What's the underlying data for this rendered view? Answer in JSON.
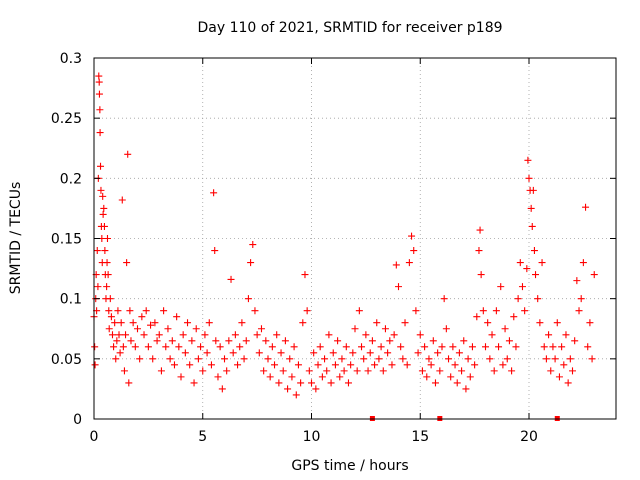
{
  "chart_data": {
    "type": "scatter",
    "title": "Day 110 of 2021, SRMTID for receiver p189",
    "xlabel": "GPS time / hours",
    "ylabel": "SRMTID / TECUs",
    "xlim": [
      0,
      24
    ],
    "ylim": [
      0,
      0.3
    ],
    "xticks": [
      0,
      5,
      10,
      15,
      20
    ],
    "xtick_labels": [
      "0",
      "5",
      "10",
      "15",
      "20"
    ],
    "yticks": [
      0,
      0.05,
      0.1,
      0.15,
      0.2,
      0.25,
      0.3
    ],
    "ytick_labels": [
      "0",
      "0.05",
      "0.1",
      "0.15",
      "0.2",
      "0.25",
      "0.3"
    ],
    "grid": true,
    "marker": "plus",
    "color": "#ff0000",
    "series": [
      {
        "name": "SRMTID",
        "points": [
          [
            0.0,
            0.085
          ],
          [
            0.03,
            0.06
          ],
          [
            0.05,
            0.045
          ],
          [
            0.08,
            0.1
          ],
          [
            0.1,
            0.12
          ],
          [
            0.12,
            0.09
          ],
          [
            0.15,
            0.14
          ],
          [
            0.18,
            0.11
          ],
          [
            0.2,
            0.2
          ],
          [
            0.22,
            0.285
          ],
          [
            0.24,
            0.28
          ],
          [
            0.25,
            0.27
          ],
          [
            0.27,
            0.257
          ],
          [
            0.28,
            0.238
          ],
          [
            0.3,
            0.21
          ],
          [
            0.32,
            0.19
          ],
          [
            0.34,
            0.16
          ],
          [
            0.36,
            0.15
          ],
          [
            0.38,
            0.13
          ],
          [
            0.4,
            0.185
          ],
          [
            0.42,
            0.17
          ],
          [
            0.45,
            0.175
          ],
          [
            0.48,
            0.16
          ],
          [
            0.5,
            0.14
          ],
          [
            0.52,
            0.12
          ],
          [
            0.55,
            0.1
          ],
          [
            0.58,
            0.11
          ],
          [
            0.6,
            0.13
          ],
          [
            0.62,
            0.15
          ],
          [
            0.65,
            0.12
          ],
          [
            0.68,
            0.09
          ],
          [
            0.7,
            0.075
          ],
          [
            0.75,
            0.1
          ],
          [
            0.8,
            0.085
          ],
          [
            0.85,
            0.07
          ],
          [
            0.9,
            0.06
          ],
          [
            0.95,
            0.08
          ],
          [
            1.0,
            0.05
          ],
          [
            1.05,
            0.065
          ],
          [
            1.1,
            0.09
          ],
          [
            1.15,
            0.07
          ],
          [
            1.2,
            0.055
          ],
          [
            1.25,
            0.08
          ],
          [
            1.3,
            0.182
          ],
          [
            1.35,
            0.06
          ],
          [
            1.4,
            0.04
          ],
          [
            1.45,
            0.07
          ],
          [
            1.5,
            0.13
          ],
          [
            1.55,
            0.22
          ],
          [
            1.6,
            0.03
          ],
          [
            1.65,
            0.09
          ],
          [
            1.7,
            0.065
          ],
          [
            1.8,
            0.08
          ],
          [
            1.9,
            0.06
          ],
          [
            2.0,
            0.075
          ],
          [
            2.1,
            0.05
          ],
          [
            2.2,
            0.085
          ],
          [
            2.3,
            0.07
          ],
          [
            2.4,
            0.09
          ],
          [
            2.5,
            0.06
          ],
          [
            2.6,
            0.078
          ],
          [
            2.7,
            0.05
          ],
          [
            2.8,
            0.08
          ],
          [
            2.9,
            0.065
          ],
          [
            3.0,
            0.07
          ],
          [
            3.1,
            0.04
          ],
          [
            3.2,
            0.09
          ],
          [
            3.3,
            0.06
          ],
          [
            3.4,
            0.075
          ],
          [
            3.5,
            0.05
          ],
          [
            3.6,
            0.065
          ],
          [
            3.7,
            0.045
          ],
          [
            3.8,
            0.085
          ],
          [
            3.9,
            0.06
          ],
          [
            4.0,
            0.035
          ],
          [
            4.1,
            0.07
          ],
          [
            4.2,
            0.055
          ],
          [
            4.3,
            0.08
          ],
          [
            4.4,
            0.045
          ],
          [
            4.5,
            0.065
          ],
          [
            4.6,
            0.03
          ],
          [
            4.7,
            0.075
          ],
          [
            4.8,
            0.05
          ],
          [
            4.9,
            0.06
          ],
          [
            5.0,
            0.04
          ],
          [
            5.1,
            0.07
          ],
          [
            5.2,
            0.055
          ],
          [
            5.3,
            0.08
          ],
          [
            5.4,
            0.045
          ],
          [
            5.5,
            0.188
          ],
          [
            5.55,
            0.14
          ],
          [
            5.6,
            0.065
          ],
          [
            5.7,
            0.035
          ],
          [
            5.8,
            0.06
          ],
          [
            5.9,
            0.025
          ],
          [
            6.0,
            0.05
          ],
          [
            6.1,
            0.04
          ],
          [
            6.2,
            0.065
          ],
          [
            6.3,
            0.116
          ],
          [
            6.4,
            0.055
          ],
          [
            6.5,
            0.07
          ],
          [
            6.6,
            0.045
          ],
          [
            6.7,
            0.06
          ],
          [
            6.8,
            0.08
          ],
          [
            6.9,
            0.05
          ],
          [
            7.0,
            0.065
          ],
          [
            7.1,
            0.1
          ],
          [
            7.2,
            0.13
          ],
          [
            7.3,
            0.145
          ],
          [
            7.4,
            0.09
          ],
          [
            7.5,
            0.07
          ],
          [
            7.6,
            0.055
          ],
          [
            7.7,
            0.075
          ],
          [
            7.8,
            0.04
          ],
          [
            7.9,
            0.065
          ],
          [
            8.0,
            0.05
          ],
          [
            8.1,
            0.035
          ],
          [
            8.2,
            0.06
          ],
          [
            8.3,
            0.045
          ],
          [
            8.4,
            0.07
          ],
          [
            8.5,
            0.03
          ],
          [
            8.6,
            0.055
          ],
          [
            8.7,
            0.04
          ],
          [
            8.8,
            0.065
          ],
          [
            8.9,
            0.025
          ],
          [
            9.0,
            0.05
          ],
          [
            9.1,
            0.035
          ],
          [
            9.2,
            0.06
          ],
          [
            9.3,
            0.02
          ],
          [
            9.4,
            0.045
          ],
          [
            9.5,
            0.03
          ],
          [
            9.6,
            0.08
          ],
          [
            9.7,
            0.12
          ],
          [
            9.8,
            0.09
          ],
          [
            9.9,
            0.04
          ],
          [
            10.0,
            0.03
          ],
          [
            10.1,
            0.055
          ],
          [
            10.2,
            0.025
          ],
          [
            10.3,
            0.045
          ],
          [
            10.4,
            0.06
          ],
          [
            10.5,
            0.035
          ],
          [
            10.6,
            0.05
          ],
          [
            10.7,
            0.04
          ],
          [
            10.8,
            0.07
          ],
          [
            10.9,
            0.03
          ],
          [
            11.0,
            0.055
          ],
          [
            11.1,
            0.045
          ],
          [
            11.2,
            0.065
          ],
          [
            11.3,
            0.035
          ],
          [
            11.4,
            0.05
          ],
          [
            11.5,
            0.04
          ],
          [
            11.6,
            0.06
          ],
          [
            11.7,
            0.03
          ],
          [
            11.8,
            0.045
          ],
          [
            11.9,
            0.055
          ],
          [
            12.0,
            0.075
          ],
          [
            12.1,
            0.04
          ],
          [
            12.2,
            0.09
          ],
          [
            12.3,
            0.06
          ],
          [
            12.4,
            0.05
          ],
          [
            12.5,
            0.07
          ],
          [
            12.6,
            0.04
          ],
          [
            12.7,
            0.055
          ],
          [
            12.8,
            0.065
          ],
          [
            12.9,
            0.045
          ],
          [
            13.0,
            0.08
          ],
          [
            13.1,
            0.05
          ],
          [
            13.2,
            0.06
          ],
          [
            13.3,
            0.04
          ],
          [
            13.4,
            0.075
          ],
          [
            13.5,
            0.055
          ],
          [
            13.6,
            0.065
          ],
          [
            13.7,
            0.045
          ],
          [
            13.8,
            0.07
          ],
          [
            13.9,
            0.128
          ],
          [
            14.0,
            0.11
          ],
          [
            14.1,
            0.06
          ],
          [
            14.2,
            0.05
          ],
          [
            14.3,
            0.08
          ],
          [
            14.4,
            0.045
          ],
          [
            14.5,
            0.13
          ],
          [
            14.6,
            0.152
          ],
          [
            14.7,
            0.14
          ],
          [
            14.8,
            0.09
          ],
          [
            14.9,
            0.055
          ],
          [
            15.0,
            0.07
          ],
          [
            15.1,
            0.04
          ],
          [
            15.2,
            0.06
          ],
          [
            15.3,
            0.035
          ],
          [
            15.4,
            0.05
          ],
          [
            15.5,
            0.045
          ],
          [
            15.6,
            0.065
          ],
          [
            15.7,
            0.03
          ],
          [
            15.8,
            0.055
          ],
          [
            15.9,
            0.04
          ],
          [
            16.0,
            0.06
          ],
          [
            16.1,
            0.1
          ],
          [
            16.2,
            0.075
          ],
          [
            16.3,
            0.05
          ],
          [
            16.4,
            0.035
          ],
          [
            16.5,
            0.06
          ],
          [
            16.6,
            0.045
          ],
          [
            16.7,
            0.03
          ],
          [
            16.8,
            0.055
          ],
          [
            16.9,
            0.04
          ],
          [
            17.0,
            0.065
          ],
          [
            17.1,
            0.025
          ],
          [
            17.2,
            0.05
          ],
          [
            17.3,
            0.035
          ],
          [
            17.4,
            0.06
          ],
          [
            17.5,
            0.045
          ],
          [
            17.6,
            0.085
          ],
          [
            17.7,
            0.14
          ],
          [
            17.75,
            0.157
          ],
          [
            17.8,
            0.12
          ],
          [
            17.9,
            0.09
          ],
          [
            18.0,
            0.06
          ],
          [
            18.1,
            0.08
          ],
          [
            18.2,
            0.05
          ],
          [
            18.3,
            0.07
          ],
          [
            18.4,
            0.04
          ],
          [
            18.5,
            0.09
          ],
          [
            18.6,
            0.06
          ],
          [
            18.7,
            0.11
          ],
          [
            18.8,
            0.045
          ],
          [
            18.9,
            0.075
          ],
          [
            19.0,
            0.05
          ],
          [
            19.1,
            0.065
          ],
          [
            19.2,
            0.04
          ],
          [
            19.3,
            0.085
          ],
          [
            19.4,
            0.06
          ],
          [
            19.5,
            0.1
          ],
          [
            19.6,
            0.13
          ],
          [
            19.7,
            0.11
          ],
          [
            19.8,
            0.09
          ],
          [
            19.9,
            0.125
          ],
          [
            19.95,
            0.215
          ],
          [
            20.0,
            0.2
          ],
          [
            20.05,
            0.19
          ],
          [
            20.1,
            0.175
          ],
          [
            20.15,
            0.16
          ],
          [
            20.2,
            0.19
          ],
          [
            20.25,
            0.14
          ],
          [
            20.3,
            0.12
          ],
          [
            20.4,
            0.1
          ],
          [
            20.5,
            0.08
          ],
          [
            20.6,
            0.13
          ],
          [
            20.7,
            0.06
          ],
          [
            20.8,
            0.05
          ],
          [
            20.9,
            0.07
          ],
          [
            21.0,
            0.04
          ],
          [
            21.1,
            0.06
          ],
          [
            21.2,
            0.05
          ],
          [
            21.3,
            0.08
          ],
          [
            21.4,
            0.035
          ],
          [
            21.5,
            0.06
          ],
          [
            21.6,
            0.045
          ],
          [
            21.7,
            0.07
          ],
          [
            21.8,
            0.03
          ],
          [
            21.9,
            0.05
          ],
          [
            22.0,
            0.04
          ],
          [
            22.1,
            0.065
          ],
          [
            22.2,
            0.115
          ],
          [
            22.3,
            0.09
          ],
          [
            22.4,
            0.1
          ],
          [
            22.5,
            0.13
          ],
          [
            22.6,
            0.176
          ],
          [
            22.7,
            0.06
          ],
          [
            22.8,
            0.08
          ],
          [
            22.9,
            0.05
          ],
          [
            23.0,
            0.12
          ]
        ]
      }
    ],
    "gap_markers_x": [
      12.8,
      15.9,
      21.3
    ]
  }
}
